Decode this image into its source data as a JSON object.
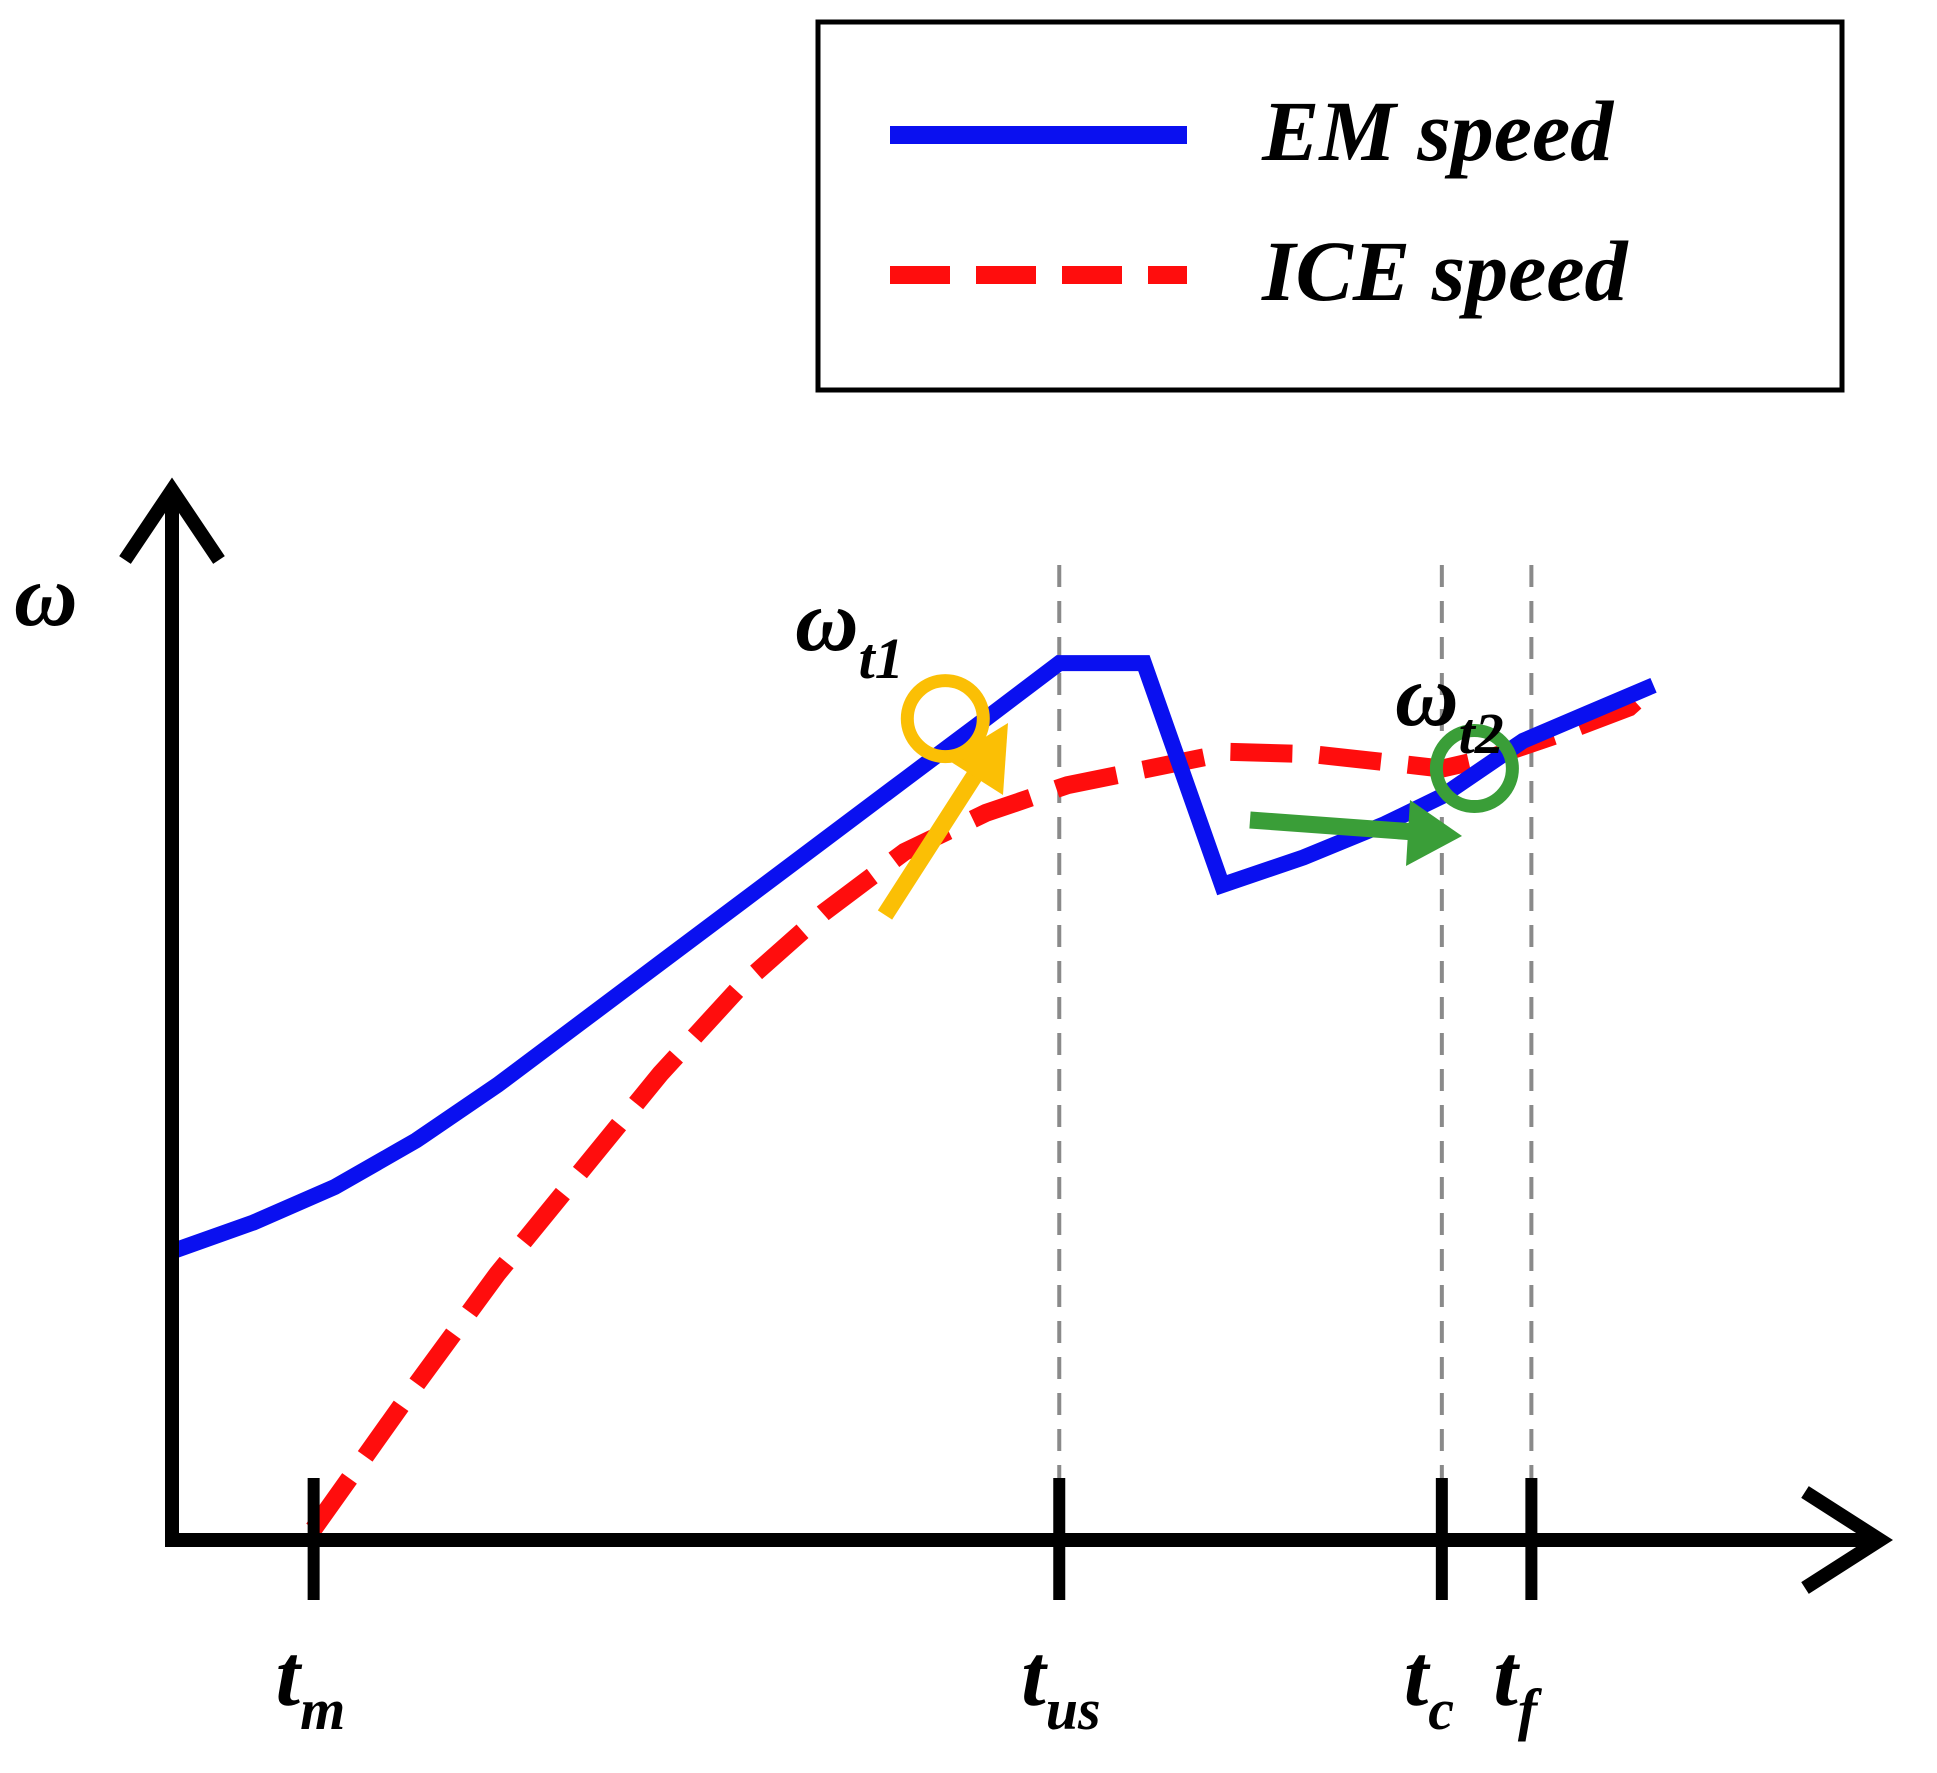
{
  "chart_data": {
    "type": "line",
    "title": "",
    "ylabel": "ω",
    "xlabel": "",
    "xlim": [
      0,
      100
    ],
    "ylim": [
      0,
      100
    ],
    "grid": false,
    "legend": {
      "placement": "top-right"
    },
    "series": [
      {
        "name": "EM speed",
        "style": "solid",
        "color": "#0a10f0",
        "x": [
          0,
          5,
          10,
          15,
          20,
          25,
          30,
          35,
          40,
          45,
          50,
          54.5,
          59.7,
          64.5,
          69.5,
          74.5,
          78,
          83,
          87,
          91
        ],
        "y": [
          26,
          28.6,
          31.8,
          36,
          41,
          46.5,
          52,
          57.5,
          63,
          68.5,
          74,
          79,
          79,
          59,
          61.5,
          64.5,
          67,
          72,
          74.5,
          77
        ]
      },
      {
        "name": "ICE speed",
        "style": "dashed",
        "color": "#ff0d0d",
        "x": [
          8.7,
          15,
          20,
          25,
          30,
          35,
          40,
          45,
          50,
          55,
          60,
          65,
          70,
          75,
          78,
          81,
          85,
          89.5,
          91
        ],
        "y": [
          1,
          14,
          24,
          33,
          42,
          50,
          56.5,
          62,
          65.5,
          68,
          69.5,
          71,
          70.8,
          70,
          69.5,
          70.5,
          72.5,
          75,
          77
        ]
      }
    ],
    "x_ticks": [
      {
        "x": 8.7,
        "main": "t",
        "sub": "m"
      },
      {
        "x": 54.5,
        "main": "t",
        "sub": "us"
      },
      {
        "x": 78,
        "main": "t",
        "sub": "c"
      },
      {
        "x": 83.5,
        "main": "t",
        "sub": "f"
      }
    ],
    "vertical_guides": [
      54.5,
      78,
      83.5
    ],
    "annotations": [
      {
        "name": "omega-t1",
        "main": "ω",
        "sub": "t1",
        "x": 47.5,
        "y": 74,
        "color": "#fbbf05"
      },
      {
        "name": "omega-t2",
        "main": "ω",
        "sub": "t2",
        "x": 80,
        "y": 69.5,
        "color": "#3a9e38"
      }
    ]
  },
  "colors": {
    "axis": "#000000",
    "guide": "#8a8a8a",
    "arrow_t1": "#fbbf05",
    "arrow_t2": "#3a9e38"
  }
}
